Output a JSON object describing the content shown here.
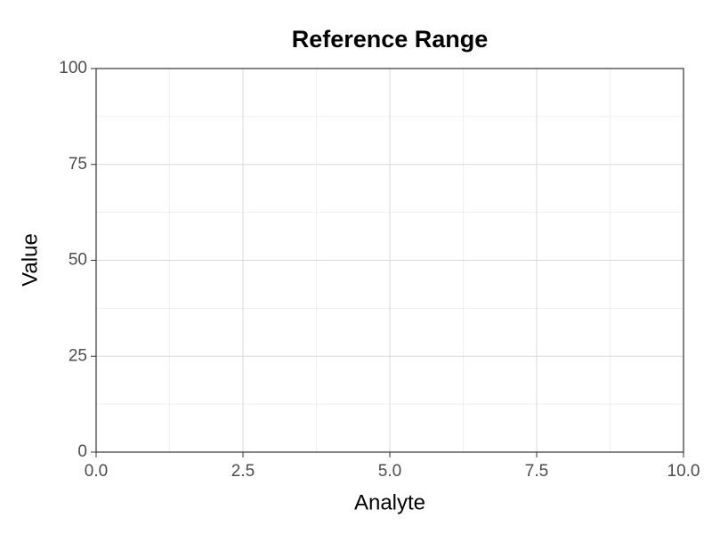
{
  "chart_data": {
    "type": "scatter",
    "title": "Reference Range",
    "x_label": "Analyte",
    "y_label": "Value",
    "series": [],
    "xlim": [
      0,
      10
    ],
    "ylim": [
      0,
      100
    ],
    "xticks": [
      {
        "value": 0,
        "label": "0.0"
      },
      {
        "value": 2.5,
        "label": "2.5"
      },
      {
        "value": 5,
        "label": "5.0"
      },
      {
        "value": 7.5,
        "label": "7.5"
      },
      {
        "value": 10,
        "label": "10.0"
      }
    ],
    "yticks": [
      0,
      25,
      50,
      75,
      100
    ],
    "x_minor_ticks": [
      1.25,
      3.75,
      6.25,
      8.75
    ],
    "y_minor_ticks": [
      12.5,
      37.5,
      62.5,
      87.5
    ],
    "grid": true
  }
}
